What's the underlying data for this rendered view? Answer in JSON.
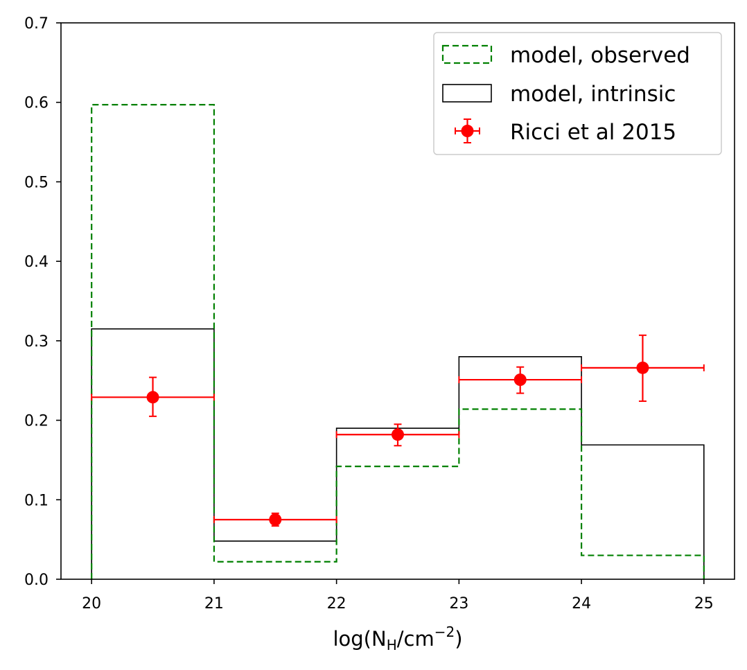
{
  "chart_data": {
    "type": "bar",
    "title": "",
    "xlabel": {
      "base": "log(N",
      "sub": "H",
      "mid": "/cm",
      "sup": "−2",
      "end": ")"
    },
    "ylabel": "",
    "xlim": [
      19.75,
      25.25
    ],
    "ylim": [
      0,
      0.7
    ],
    "x_ticks": [
      "20",
      "21",
      "22",
      "23",
      "24",
      "25"
    ],
    "x_tick_values": [
      20,
      21,
      22,
      23,
      24,
      25
    ],
    "y_ticks": [
      "0.0",
      "0.1",
      "0.2",
      "0.3",
      "0.4",
      "0.5",
      "0.6",
      "0.7"
    ],
    "y_tick_values": [
      0,
      0.1,
      0.2,
      0.3,
      0.4,
      0.5,
      0.6,
      0.7
    ],
    "bin_edges": [
      20,
      21,
      22,
      23,
      24,
      25
    ],
    "series": [
      {
        "name": "model, observed",
        "kind": "step-dashed",
        "color": "#008000",
        "values": [
          0.597,
          0.022,
          0.142,
          0.214,
          0.03
        ]
      },
      {
        "name": "model, intrinsic",
        "kind": "step-solid",
        "color": "#000000",
        "values": [
          0.315,
          0.048,
          0.19,
          0.28,
          0.169
        ]
      },
      {
        "name": "Ricci et al 2015",
        "kind": "errorbar",
        "color": "#ff0000",
        "x": [
          20.5,
          21.5,
          22.5,
          23.5,
          24.5
        ],
        "xerr": [
          0.5,
          0.5,
          0.5,
          0.5,
          0.5
        ],
        "y": [
          0.229,
          0.075,
          0.182,
          0.251,
          0.266
        ],
        "yerr_low": [
          0.024,
          0.008,
          0.014,
          0.017,
          0.042
        ],
        "yerr_high": [
          0.025,
          0.008,
          0.013,
          0.016,
          0.041
        ]
      }
    ],
    "legend": {
      "position": "top-right",
      "entries": [
        "model, observed",
        "model, intrinsic",
        "Ricci et al 2015"
      ]
    }
  }
}
